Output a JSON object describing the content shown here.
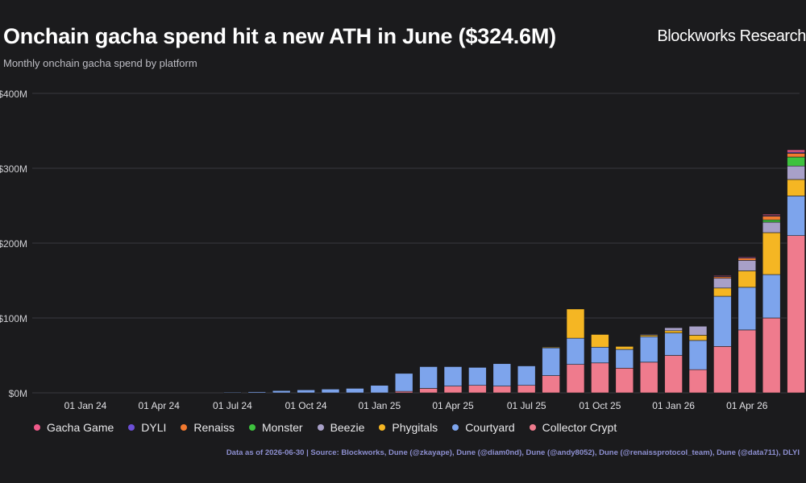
{
  "header": {
    "title": "Onchain gacha spend hit a new ATH in June ($324.6M)",
    "subtitle": "Monthly onchain gacha spend by platform",
    "brand": "Blockworks Research"
  },
  "footer": {
    "source": "Data as of 2026-06-30 | Source: Blockworks, Dune (@zkayape), Dune (@diam0nd), Dune (@andy8052), Dune (@renaissprotocol_team), Dune (@data711), DLYI"
  },
  "chart_data": {
    "type": "bar",
    "stacked": true,
    "title": "Onchain gacha spend hit a new ATH in June ($324.6M)",
    "subtitle": "Monthly onchain gacha spend by platform",
    "y_tick_labels": [
      "$0M",
      "$100M",
      "$200M",
      "$300M",
      "$400M"
    ],
    "y_tick_values": [
      0,
      100,
      200,
      300,
      400
    ],
    "ylim": [
      0,
      400
    ],
    "x_tick_labels": [
      "01 Jan 24",
      "01 Apr 24",
      "01 Jul 24",
      "01 Oct 24",
      "01 Jan 25",
      "01 Apr 25",
      "01 Jul 25",
      "01 Oct 25",
      "01 Jan 26",
      "01 Apr 26"
    ],
    "x_tick_months": [
      "2024-01",
      "2024-04",
      "2024-07",
      "2024-10",
      "2025-01",
      "2025-04",
      "2025-07",
      "2025-10",
      "2026-01",
      "2026-04"
    ],
    "categories": [
      "2024-07",
      "2024-08",
      "2024-09",
      "2024-10",
      "2024-11",
      "2024-12",
      "2025-01",
      "2025-02",
      "2025-03",
      "2025-04",
      "2025-05",
      "2025-06",
      "2025-07",
      "2025-08",
      "2025-09",
      "2025-10",
      "2025-11",
      "2025-12",
      "2026-01",
      "2026-02",
      "2026-03",
      "2026-04",
      "2026-05",
      "2026-06"
    ],
    "grid": true,
    "legend_position": "bottom",
    "series": [
      {
        "name": "Collector Crypt",
        "color": "#ef7b8d",
        "values": [
          0,
          0,
          0,
          0,
          0,
          0,
          0,
          2,
          6,
          9,
          10,
          9,
          10,
          23,
          38,
          40,
          33,
          41,
          50,
          31,
          62,
          84,
          100,
          210
        ]
      },
      {
        "name": "Courtyard",
        "color": "#7da4ec",
        "values": [
          1,
          1.5,
          3,
          4,
          5,
          6,
          10,
          24,
          29,
          26,
          24,
          30,
          26,
          37,
          35,
          21,
          25,
          34,
          30,
          39,
          67,
          57,
          58,
          53
        ]
      },
      {
        "name": "Phygitals",
        "color": "#f5b623",
        "values": [
          0,
          0,
          0,
          0,
          0,
          0,
          0,
          0,
          0,
          0,
          0,
          0,
          0,
          1,
          39,
          17,
          4,
          2,
          3,
          7,
          11,
          22,
          56,
          22
        ]
      },
      {
        "name": "Beezie",
        "color": "#a8a0c8",
        "values": [
          0,
          0,
          0,
          0,
          0,
          0,
          0,
          0,
          0,
          0,
          0,
          0,
          0,
          0,
          0,
          0,
          0,
          1,
          4,
          12,
          13,
          14,
          14,
          18
        ]
      },
      {
        "name": "Monster",
        "color": "#3ec23e",
        "values": [
          0,
          0,
          0,
          0,
          0,
          0,
          0,
          0,
          0,
          0,
          0,
          0,
          0,
          0,
          0,
          0,
          0,
          0,
          0,
          0,
          0,
          0,
          3,
          12
        ]
      },
      {
        "name": "Renaiss",
        "color": "#f2792f",
        "values": [
          0,
          0,
          0,
          0,
          0,
          0,
          0,
          0,
          0,
          0,
          0,
          0,
          0,
          0,
          0,
          0,
          0,
          0,
          0,
          0,
          2,
          3,
          5,
          5
        ]
      },
      {
        "name": "DYLI",
        "color": "#6c4fd6",
        "values": [
          0,
          0,
          0,
          0,
          0,
          0,
          0,
          0,
          0,
          0,
          0,
          0,
          0,
          0,
          0,
          0,
          0,
          0,
          0,
          0,
          1,
          1,
          1,
          1.5
        ]
      },
      {
        "name": "Gacha Game",
        "color": "#f05a8a",
        "values": [
          0,
          0,
          0,
          0,
          0,
          0,
          0,
          0,
          0,
          0,
          0,
          0,
          0,
          0,
          0,
          0,
          0,
          0,
          0,
          0,
          1,
          1,
          1.5,
          3
        ]
      }
    ],
    "legend_order": [
      "Gacha Game",
      "DYLI",
      "Renaiss",
      "Monster",
      "Beezie",
      "Phygitals",
      "Courtyard",
      "Collector Crypt"
    ]
  }
}
